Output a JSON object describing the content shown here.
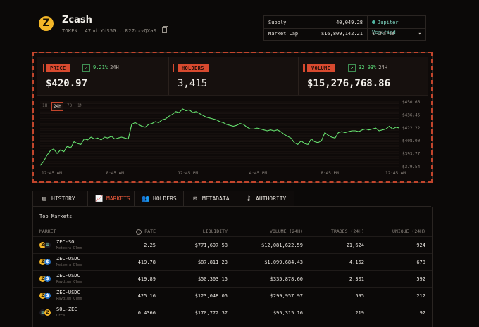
{
  "token": {
    "icon_symbol": "Z",
    "name": "Zcash",
    "type_label": "TOKEN",
    "address": "A7bdiYdS5G...R27dxvQXaS",
    "copy_icon": "copy-icon"
  },
  "stats": {
    "supply_label": "Supply",
    "supply_value": "40,049.28",
    "mcap_label": "Market Cap",
    "mcap_value": "$16,809,142.21"
  },
  "side": {
    "verified": "Jupiter Verified",
    "charts": "Charts",
    "charts_icon": "chart-icon",
    "chevron": "▾"
  },
  "metrics": {
    "price": {
      "label": "PRICE",
      "change": "9.21%",
      "period": "24H",
      "value": "$420.97"
    },
    "holders": {
      "label": "HOLDERS",
      "value": "3,415"
    },
    "volume": {
      "label": "VOLUME",
      "change": "32.93%",
      "period": "24H",
      "value": "$15,276,768.86"
    }
  },
  "ranges": [
    "1H",
    "24H",
    "7D",
    "1M"
  ],
  "active_range": "24H",
  "chart_data": {
    "type": "line",
    "x_ticks": [
      "12:45 AM",
      "8:45 AM",
      "12:45 PM",
      "4:45 PM",
      "8:45 PM",
      "12:45 AM"
    ],
    "y_ticks": [
      "$450.66",
      "$436.45",
      "$422.22",
      "$408.00",
      "$393.77",
      "$379.54"
    ],
    "ylim": [
      379.54,
      450.66
    ],
    "series": [
      {
        "values": [
          381,
          385,
          392,
          397,
          399,
          394,
          398,
          396,
          402,
          400,
          407,
          405,
          404,
          410,
          409,
          412,
          410,
          411,
          409,
          412,
          411,
          413,
          410,
          411,
          412,
          411,
          410,
          426,
          428,
          426,
          424,
          423,
          426,
          427,
          429,
          428,
          431,
          432,
          435,
          437,
          440,
          439,
          443,
          441,
          442,
          439,
          440,
          438,
          436,
          434,
          433,
          432,
          431,
          429,
          428,
          426,
          425,
          424,
          425,
          427,
          426,
          423,
          421,
          421,
          422,
          421,
          420,
          419,
          420,
          419,
          420,
          418,
          415,
          413,
          411,
          406,
          404,
          408,
          405,
          404,
          410,
          407,
          406,
          408,
          417,
          414,
          412,
          411,
          417,
          418,
          417,
          418,
          419,
          419,
          418,
          420,
          421,
          420,
          421,
          422,
          419,
          420,
          421,
          424,
          421,
          423,
          422
        ]
      }
    ],
    "color": "#66e26f"
  },
  "tabs": [
    {
      "label": "HISTORY",
      "icon": "history-icon"
    },
    {
      "label": "MARKETS",
      "icon": "markets-icon"
    },
    {
      "label": "HOLDERS",
      "icon": "holders-icon"
    },
    {
      "label": "METADATA",
      "icon": "metadata-icon"
    },
    {
      "label": "AUTHORITY",
      "icon": "key-icon"
    }
  ],
  "active_tab": "MARKETS",
  "table": {
    "title": "Top Markets",
    "columns": [
      "MARKET",
      "RATE",
      "LIQUIDITY",
      "VOLUME (24H)",
      "TRADES (24H)",
      "UNIQUE (24H)"
    ],
    "rows": [
      {
        "pair": "ZEC-SOL",
        "dex": "Meteora Dlmm",
        "rate": "2.25",
        "liquidity": "$771,697.58",
        "volume": "$12,081,622.59",
        "trades": "21,624",
        "unique": "924"
      },
      {
        "pair": "ZEC-USDC",
        "dex": "Meteora Dlmm",
        "rate": "419.78",
        "liquidity": "$87,811.23",
        "volume": "$1,099,684.43",
        "trades": "4,152",
        "unique": "678"
      },
      {
        "pair": "ZEC-USDC",
        "dex": "Raydium Clmm",
        "rate": "419.89",
        "liquidity": "$50,303.15",
        "volume": "$335,878.60",
        "trades": "2,301",
        "unique": "592"
      },
      {
        "pair": "ZEC-USDC",
        "dex": "Raydium Clmm",
        "rate": "425.16",
        "liquidity": "$123,048.05",
        "volume": "$299,957.97",
        "trades": "595",
        "unique": "212"
      },
      {
        "pair": "SOL-ZEC",
        "dex": "Orca",
        "rate": "0.4366",
        "liquidity": "$170,772.37",
        "volume": "$95,315.16",
        "trades": "219",
        "unique": "92"
      }
    ]
  }
}
